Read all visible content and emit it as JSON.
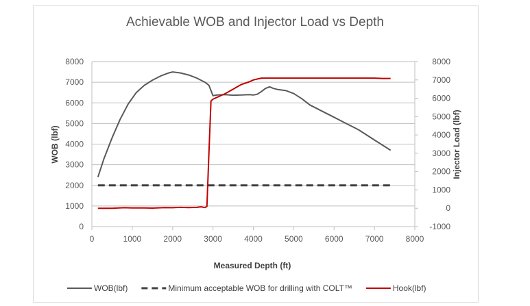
{
  "chart_data": {
    "type": "line",
    "title": "Achievable WOB and Injector Load vs Depth",
    "xlabel": "Measured Depth (ft)",
    "ylabel": "WOB (lbf)",
    "y2label": "Injector Load (lbf)",
    "xlim": [
      0,
      8000
    ],
    "ylim": [
      0,
      8000
    ],
    "y2lim": [
      -1000,
      8000
    ],
    "xticks": [
      0,
      1000,
      2000,
      3000,
      4000,
      5000,
      6000,
      7000,
      8000
    ],
    "yticks": [
      0,
      1000,
      2000,
      3000,
      4000,
      5000,
      6000,
      7000,
      8000
    ],
    "y2ticks": [
      -1000,
      0,
      1000,
      2000,
      3000,
      4000,
      5000,
      6000,
      7000,
      8000
    ],
    "grid": true,
    "legend_position": "bottom",
    "series": [
      {
        "name": "WOB(lbf)",
        "axis": "left",
        "color": "#595959",
        "style": "solid",
        "x": [
          150,
          300,
          500,
          700,
          900,
          1100,
          1300,
          1500,
          1700,
          1900,
          2000,
          2200,
          2400,
          2600,
          2800,
          2900,
          3000,
          3100,
          3300,
          3500,
          3700,
          3900,
          4000,
          4100,
          4200,
          4300,
          4400,
          4500,
          4600,
          4800,
          5000,
          5200,
          5400,
          5600,
          5800,
          6000,
          6200,
          6400,
          6600,
          6800,
          7000,
          7200,
          7400
        ],
        "y": [
          2400,
          3300,
          4300,
          5200,
          5950,
          6500,
          6850,
          7100,
          7300,
          7450,
          7500,
          7450,
          7350,
          7200,
          7000,
          6850,
          6350,
          6380,
          6400,
          6370,
          6380,
          6400,
          6380,
          6420,
          6550,
          6700,
          6780,
          6700,
          6650,
          6600,
          6450,
          6200,
          5900,
          5700,
          5500,
          5300,
          5100,
          4900,
          4700,
          4450,
          4200,
          3950,
          3700
        ]
      },
      {
        "name": "Minimum acceptable WOB for drilling with COLT™",
        "axis": "left",
        "color": "#404040",
        "style": "dashed",
        "x": [
          150,
          7400
        ],
        "y": [
          2000,
          2000
        ]
      },
      {
        "name": "Hook(lbf)",
        "axis": "right",
        "color": "#c00000",
        "style": "solid",
        "x": [
          150,
          500,
          800,
          1000,
          1300,
          1500,
          1800,
          2000,
          2200,
          2400,
          2600,
          2700,
          2800,
          2850,
          2900,
          2950,
          3000,
          3100,
          3300,
          3500,
          3700,
          3900,
          4000,
          4100,
          4200,
          4400,
          4800,
          5500,
          6000,
          6500,
          7000,
          7200,
          7400
        ],
        "y": [
          0,
          0,
          30,
          20,
          20,
          10,
          40,
          30,
          50,
          40,
          50,
          80,
          40,
          100,
          3000,
          5850,
          5950,
          6050,
          6250,
          6500,
          6750,
          6900,
          7000,
          7050,
          7100,
          7100,
          7100,
          7100,
          7100,
          7100,
          7100,
          7080,
          7080
        ]
      }
    ]
  }
}
